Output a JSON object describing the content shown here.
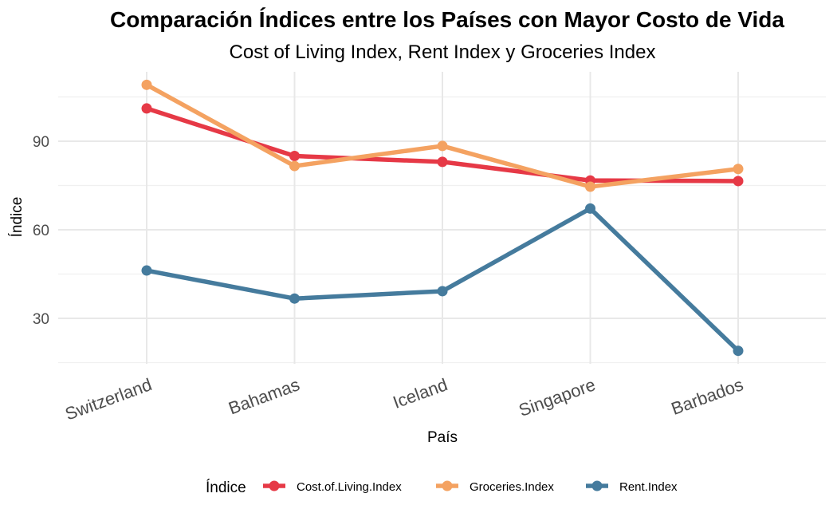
{
  "chart_data": {
    "type": "line",
    "title": "Comparación Índices entre los Países con Mayor Costo de Vida",
    "subtitle": "Cost of Living Index, Rent Index y Groceries Index",
    "xlabel": "País",
    "ylabel": "Índice",
    "categories": [
      "Switzerland",
      "Bahamas",
      "Iceland",
      "Singapore",
      "Barbados"
    ],
    "y_ticks": [
      30,
      60,
      90
    ],
    "ylim": [
      14,
      113
    ],
    "grid": true,
    "legend": {
      "title": "Índice",
      "placement": "bottom"
    },
    "series": [
      {
        "name": "Cost.of.Living.Index",
        "color": "#e63946",
        "values": [
          101.1,
          85.0,
          83.0,
          76.7,
          76.5
        ]
      },
      {
        "name": "Groceries.Index",
        "color": "#f4a261",
        "values": [
          109.1,
          81.6,
          88.4,
          74.6,
          80.6
        ]
      },
      {
        "name": "Rent.Index",
        "color": "#457b9d",
        "values": [
          46.2,
          36.7,
          39.2,
          67.2,
          19.0
        ]
      }
    ]
  }
}
